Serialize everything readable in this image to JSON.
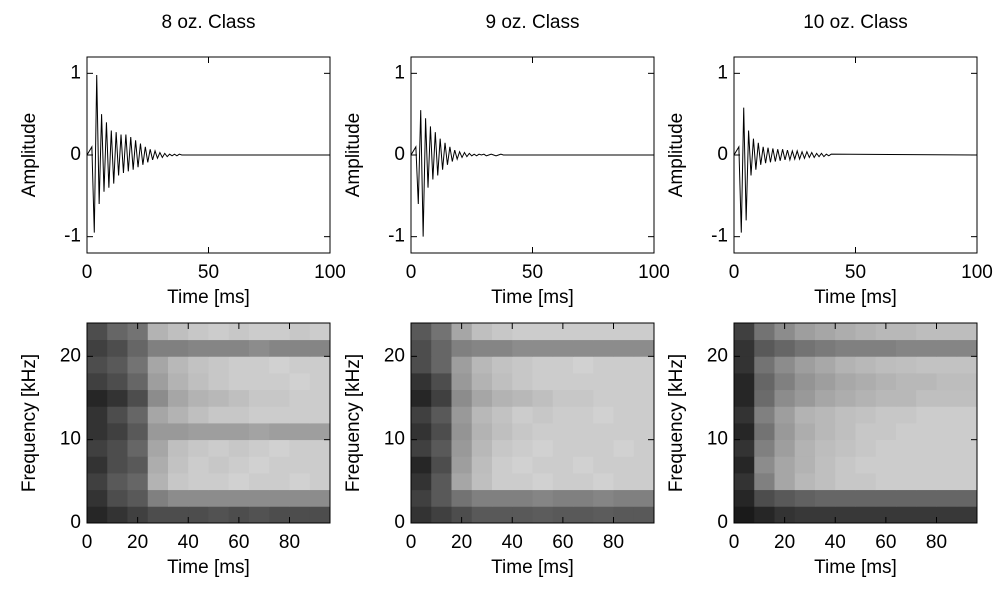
{
  "chart_data": [
    {
      "type": "line",
      "title": "8 oz. Class",
      "xlabel": "Time [ms]",
      "ylabel": "Amplitude",
      "color": "#000000",
      "x": [
        0,
        2,
        3,
        4,
        5,
        6,
        7,
        8,
        9,
        10,
        11,
        12,
        13,
        14,
        15,
        16,
        17,
        18,
        19,
        20,
        21,
        22,
        23,
        24,
        25,
        26,
        27,
        28,
        29,
        30,
        31,
        32,
        33,
        34,
        35,
        36,
        37,
        38,
        39,
        40,
        100
      ],
      "values": [
        0,
        0.1,
        -0.95,
        0.98,
        -0.6,
        0.5,
        -0.45,
        0.4,
        -0.4,
        0.3,
        -0.35,
        0.28,
        -0.25,
        0.25,
        -0.22,
        0.25,
        -0.2,
        0.22,
        -0.18,
        0.18,
        -0.15,
        0.14,
        -0.12,
        0.1,
        -0.09,
        0.07,
        -0.06,
        0.05,
        -0.04,
        0.03,
        -0.03,
        0.02,
        -0.02,
        0.01,
        -0.01,
        0.01,
        -0.01,
        0.01,
        0,
        0,
        0
      ],
      "xlim": [
        0,
        100
      ],
      "ylim": [
        -1.2,
        1.2
      ],
      "xticks": [
        0,
        50,
        100
      ],
      "yticks": [
        -1,
        0,
        1
      ]
    },
    {
      "type": "line",
      "title": "9 oz. Class",
      "xlabel": "Time [ms]",
      "ylabel": "Amplitude",
      "color": "#000000",
      "x": [
        0,
        2,
        3,
        4,
        5,
        6,
        7,
        8,
        9,
        10,
        11,
        12,
        13,
        14,
        15,
        16,
        17,
        18,
        19,
        20,
        21,
        22,
        23,
        24,
        25,
        26,
        27,
        28,
        29,
        30,
        31,
        32,
        33,
        34,
        35,
        36,
        37,
        38,
        39,
        40,
        100
      ],
      "values": [
        0,
        0.1,
        -0.6,
        0.55,
        -1.0,
        0.45,
        -0.4,
        0.35,
        -0.3,
        0.28,
        -0.25,
        0.2,
        -0.18,
        0.15,
        -0.12,
        0.1,
        -0.08,
        0.06,
        -0.05,
        0.04,
        -0.03,
        0.03,
        -0.02,
        0.02,
        -0.01,
        0.01,
        -0.01,
        0.01,
        0,
        0.01,
        -0.01,
        0,
        0.01,
        0,
        -0.01,
        0,
        0.01,
        0,
        0,
        0,
        0
      ],
      "xlim": [
        0,
        100
      ],
      "ylim": [
        -1.2,
        1.2
      ],
      "xticks": [
        0,
        50,
        100
      ],
      "yticks": [
        -1,
        0,
        1
      ]
    },
    {
      "type": "line",
      "title": "10 oz. Class",
      "xlabel": "Time [ms]",
      "ylabel": "Amplitude",
      "color": "#000000",
      "x": [
        0,
        2,
        3,
        4,
        5,
        6,
        7,
        8,
        9,
        10,
        11,
        12,
        13,
        14,
        15,
        16,
        17,
        18,
        19,
        20,
        21,
        22,
        23,
        24,
        25,
        26,
        27,
        28,
        29,
        30,
        31,
        32,
        33,
        34,
        35,
        36,
        37,
        38,
        39,
        40,
        100
      ],
      "values": [
        0,
        0.1,
        -0.95,
        0.58,
        -0.8,
        0.3,
        -0.25,
        0.2,
        -0.18,
        0.15,
        -0.12,
        0.1,
        -0.1,
        0.09,
        -0.09,
        0.08,
        -0.08,
        0.07,
        -0.07,
        0.07,
        -0.06,
        0.06,
        -0.06,
        0.05,
        -0.05,
        0.05,
        -0.05,
        0.04,
        -0.04,
        0.04,
        -0.03,
        0.03,
        -0.03,
        0.02,
        -0.02,
        0.02,
        -0.02,
        0.01,
        -0.01,
        0.01,
        0
      ],
      "xlim": [
        0,
        100
      ],
      "ylim": [
        -1.2,
        1.2
      ],
      "xticks": [
        0,
        50,
        100
      ],
      "yticks": [
        -1,
        0,
        1
      ]
    },
    {
      "type": "heatmap",
      "xlabel": "Time [ms]",
      "ylabel": "Frequency [kHz]",
      "colormap": "gray",
      "xbins": [
        0,
        8,
        16,
        24,
        32,
        40,
        48,
        56,
        64,
        72,
        80,
        88,
        96
      ],
      "ybins": [
        0,
        2,
        4,
        6,
        8,
        10,
        12,
        14,
        16,
        18,
        20,
        22,
        24
      ],
      "z": [
        [
          0.15,
          0.2,
          0.25,
          0.3,
          0.3,
          0.3,
          0.32,
          0.3,
          0.32,
          0.3,
          0.3,
          0.3
        ],
        [
          0.2,
          0.3,
          0.35,
          0.5,
          0.55,
          0.55,
          0.55,
          0.55,
          0.55,
          0.55,
          0.55,
          0.55
        ],
        [
          0.25,
          0.35,
          0.4,
          0.7,
          0.78,
          0.8,
          0.8,
          0.82,
          0.8,
          0.8,
          0.82,
          0.8
        ],
        [
          0.2,
          0.3,
          0.35,
          0.68,
          0.76,
          0.8,
          0.78,
          0.8,
          0.82,
          0.8,
          0.8,
          0.8
        ],
        [
          0.25,
          0.3,
          0.4,
          0.65,
          0.75,
          0.78,
          0.8,
          0.78,
          0.8,
          0.82,
          0.8,
          0.8
        ],
        [
          0.2,
          0.25,
          0.35,
          0.6,
          0.6,
          0.62,
          0.62,
          0.62,
          0.64,
          0.62,
          0.62,
          0.62
        ],
        [
          0.2,
          0.3,
          0.4,
          0.65,
          0.7,
          0.75,
          0.78,
          0.78,
          0.8,
          0.8,
          0.8,
          0.8
        ],
        [
          0.15,
          0.2,
          0.3,
          0.55,
          0.65,
          0.7,
          0.72,
          0.75,
          0.78,
          0.78,
          0.8,
          0.8
        ],
        [
          0.25,
          0.3,
          0.4,
          0.62,
          0.7,
          0.75,
          0.78,
          0.8,
          0.8,
          0.8,
          0.82,
          0.8
        ],
        [
          0.3,
          0.35,
          0.45,
          0.65,
          0.72,
          0.76,
          0.78,
          0.8,
          0.8,
          0.82,
          0.8,
          0.8
        ],
        [
          0.25,
          0.3,
          0.4,
          0.5,
          0.5,
          0.52,
          0.52,
          0.52,
          0.55,
          0.52,
          0.52,
          0.52
        ],
        [
          0.3,
          0.4,
          0.45,
          0.7,
          0.75,
          0.78,
          0.8,
          0.78,
          0.8,
          0.8,
          0.78,
          0.8
        ]
      ],
      "xlim": [
        0,
        96
      ],
      "ylim": [
        0,
        24
      ],
      "xticks": [
        0,
        20,
        40,
        60,
        80
      ],
      "yticks": [
        0,
        10,
        20
      ]
    },
    {
      "type": "heatmap",
      "xlabel": "Time [ms]",
      "ylabel": "Frequency [kHz]",
      "colormap": "gray",
      "xbins": [
        0,
        8,
        16,
        24,
        32,
        40,
        48,
        56,
        64,
        72,
        80,
        88,
        96
      ],
      "ybins": [
        0,
        2,
        4,
        6,
        8,
        10,
        12,
        14,
        16,
        18,
        20,
        22,
        24
      ],
      "z": [
        [
          0.2,
          0.25,
          0.3,
          0.35,
          0.35,
          0.35,
          0.36,
          0.35,
          0.35,
          0.36,
          0.35,
          0.35
        ],
        [
          0.25,
          0.35,
          0.45,
          0.5,
          0.5,
          0.5,
          0.52,
          0.5,
          0.5,
          0.52,
          0.5,
          0.5
        ],
        [
          0.2,
          0.35,
          0.65,
          0.75,
          0.8,
          0.8,
          0.82,
          0.8,
          0.8,
          0.82,
          0.8,
          0.8
        ],
        [
          0.15,
          0.3,
          0.62,
          0.74,
          0.8,
          0.82,
          0.8,
          0.8,
          0.82,
          0.8,
          0.8,
          0.8
        ],
        [
          0.25,
          0.35,
          0.6,
          0.72,
          0.78,
          0.8,
          0.82,
          0.8,
          0.8,
          0.8,
          0.82,
          0.8
        ],
        [
          0.2,
          0.3,
          0.58,
          0.7,
          0.75,
          0.78,
          0.8,
          0.8,
          0.8,
          0.8,
          0.8,
          0.8
        ],
        [
          0.25,
          0.35,
          0.6,
          0.72,
          0.76,
          0.8,
          0.78,
          0.8,
          0.8,
          0.82,
          0.8,
          0.8
        ],
        [
          0.15,
          0.25,
          0.55,
          0.65,
          0.7,
          0.72,
          0.75,
          0.78,
          0.78,
          0.8,
          0.8,
          0.8
        ],
        [
          0.2,
          0.3,
          0.6,
          0.7,
          0.75,
          0.78,
          0.8,
          0.8,
          0.8,
          0.8,
          0.8,
          0.8
        ],
        [
          0.3,
          0.4,
          0.62,
          0.72,
          0.76,
          0.78,
          0.8,
          0.8,
          0.82,
          0.8,
          0.8,
          0.8
        ],
        [
          0.3,
          0.4,
          0.5,
          0.52,
          0.52,
          0.55,
          0.55,
          0.55,
          0.55,
          0.55,
          0.55,
          0.55
        ],
        [
          0.35,
          0.45,
          0.65,
          0.75,
          0.78,
          0.8,
          0.8,
          0.8,
          0.8,
          0.8,
          0.8,
          0.8
        ]
      ],
      "xlim": [
        0,
        96
      ],
      "ylim": [
        0,
        24
      ],
      "xticks": [
        0,
        20,
        40,
        60,
        80
      ],
      "yticks": [
        0,
        10,
        20
      ]
    },
    {
      "type": "heatmap",
      "xlabel": "Time [ms]",
      "ylabel": "Frequency [kHz]",
      "colormap": "gray",
      "xbins": [
        0,
        8,
        16,
        24,
        32,
        40,
        48,
        56,
        64,
        72,
        80,
        88,
        96
      ],
      "ybins": [
        0,
        2,
        4,
        6,
        8,
        10,
        12,
        14,
        16,
        18,
        20,
        22,
        24
      ],
      "z": [
        [
          0.1,
          0.15,
          0.2,
          0.22,
          0.22,
          0.22,
          0.22,
          0.22,
          0.22,
          0.22,
          0.22,
          0.22
        ],
        [
          0.15,
          0.3,
          0.35,
          0.38,
          0.4,
          0.4,
          0.4,
          0.4,
          0.4,
          0.4,
          0.4,
          0.4
        ],
        [
          0.2,
          0.5,
          0.65,
          0.72,
          0.75,
          0.78,
          0.78,
          0.8,
          0.8,
          0.8,
          0.8,
          0.8
        ],
        [
          0.15,
          0.55,
          0.65,
          0.7,
          0.75,
          0.78,
          0.8,
          0.8,
          0.8,
          0.8,
          0.8,
          0.8
        ],
        [
          0.2,
          0.5,
          0.62,
          0.7,
          0.74,
          0.76,
          0.78,
          0.8,
          0.8,
          0.8,
          0.8,
          0.8
        ],
        [
          0.15,
          0.45,
          0.6,
          0.68,
          0.72,
          0.75,
          0.78,
          0.78,
          0.8,
          0.8,
          0.8,
          0.8
        ],
        [
          0.2,
          0.5,
          0.62,
          0.7,
          0.72,
          0.75,
          0.76,
          0.78,
          0.78,
          0.8,
          0.8,
          0.8
        ],
        [
          0.15,
          0.42,
          0.55,
          0.6,
          0.65,
          0.68,
          0.7,
          0.72,
          0.72,
          0.75,
          0.75,
          0.75
        ],
        [
          0.15,
          0.4,
          0.5,
          0.58,
          0.62,
          0.66,
          0.68,
          0.7,
          0.72,
          0.72,
          0.74,
          0.74
        ],
        [
          0.2,
          0.45,
          0.55,
          0.62,
          0.66,
          0.7,
          0.72,
          0.74,
          0.75,
          0.76,
          0.76,
          0.76
        ],
        [
          0.2,
          0.35,
          0.4,
          0.45,
          0.48,
          0.5,
          0.5,
          0.5,
          0.52,
          0.52,
          0.52,
          0.52
        ],
        [
          0.25,
          0.45,
          0.55,
          0.62,
          0.65,
          0.68,
          0.7,
          0.72,
          0.72,
          0.74,
          0.74,
          0.74
        ]
      ],
      "xlim": [
        0,
        96
      ],
      "ylim": [
        0,
        24
      ],
      "xticks": [
        0,
        20,
        40,
        60,
        80
      ],
      "yticks": [
        0,
        10,
        20
      ]
    }
  ]
}
